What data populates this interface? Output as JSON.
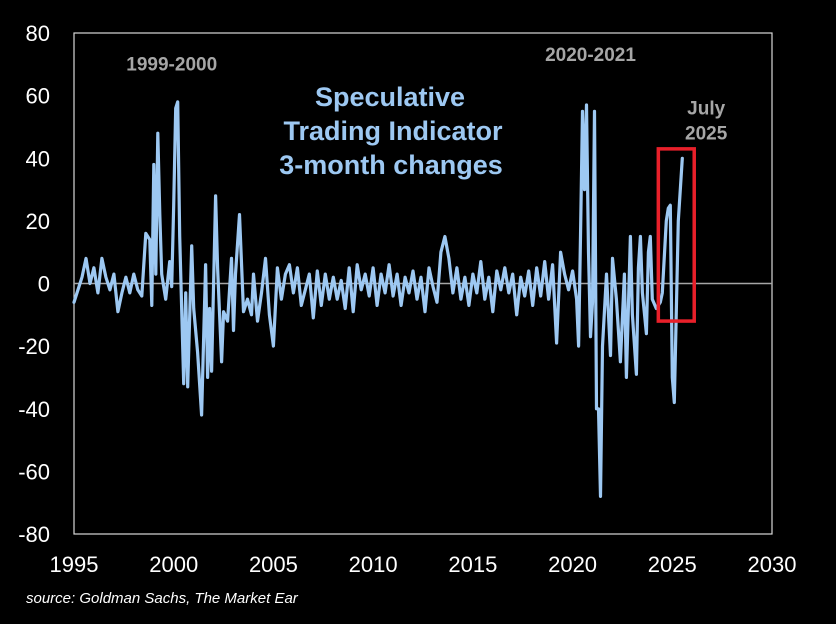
{
  "chart_data": {
    "type": "line",
    "title": [
      "Speculative",
      "Trading Indicator",
      "3-month changes"
    ],
    "xlabel": "",
    "ylabel": "",
    "xlim": [
      1995,
      2030
    ],
    "ylim": [
      -80,
      80
    ],
    "x_ticks": [
      "1995",
      "2000",
      "2005",
      "2010",
      "2015",
      "2020",
      "2025",
      "2030"
    ],
    "y_ticks": [
      "80",
      "60",
      "40",
      "20",
      "0",
      "-20",
      "-40",
      "-60",
      "-80"
    ],
    "grid": false,
    "zero_line": true,
    "annotations": [
      {
        "text": "1999-2000",
        "x": 1999.9,
        "y": 68
      },
      {
        "text": "2020-2021",
        "x": 2020.9,
        "y": 71
      },
      {
        "text": "July",
        "x": 2026.7,
        "y": 54
      },
      {
        "text": "2025",
        "x": 2026.7,
        "y": 46
      }
    ],
    "highlight_box": {
      "x0": 2024.3,
      "x1": 2026.1,
      "y0": -12,
      "y1": 43,
      "color": "#e8202a"
    },
    "line_color": "#9dc8f2",
    "series": [
      {
        "points": [
          [
            1995.0,
            -6
          ],
          [
            1995.2,
            -2
          ],
          [
            1995.4,
            2
          ],
          [
            1995.6,
            8
          ],
          [
            1995.8,
            0
          ],
          [
            1996.0,
            5
          ],
          [
            1996.2,
            -3
          ],
          [
            1996.4,
            8
          ],
          [
            1996.6,
            2
          ],
          [
            1996.8,
            -2
          ],
          [
            1997.0,
            3
          ],
          [
            1997.2,
            -9
          ],
          [
            1997.4,
            -3
          ],
          [
            1997.6,
            2
          ],
          [
            1997.8,
            -3
          ],
          [
            1998.0,
            3
          ],
          [
            1998.2,
            -2
          ],
          [
            1998.4,
            -4
          ],
          [
            1998.6,
            16
          ],
          [
            1998.8,
            14
          ],
          [
            1998.9,
            -7
          ],
          [
            1999.0,
            38
          ],
          [
            1999.1,
            3
          ],
          [
            1999.2,
            48
          ],
          [
            1999.3,
            22
          ],
          [
            1999.4,
            3
          ],
          [
            1999.6,
            -5
          ],
          [
            1999.8,
            7
          ],
          [
            1999.9,
            -1
          ],
          [
            2000.0,
            25
          ],
          [
            2000.1,
            56
          ],
          [
            2000.2,
            58
          ],
          [
            2000.3,
            15
          ],
          [
            2000.5,
            -32
          ],
          [
            2000.6,
            -3
          ],
          [
            2000.7,
            -33
          ],
          [
            2000.9,
            12
          ],
          [
            2001.0,
            -8
          ],
          [
            2001.2,
            -22
          ],
          [
            2001.4,
            -42
          ],
          [
            2001.6,
            6
          ],
          [
            2001.7,
            -30
          ],
          [
            2001.8,
            -8
          ],
          [
            2001.9,
            -28
          ],
          [
            2002.1,
            28
          ],
          [
            2002.2,
            5
          ],
          [
            2002.4,
            -25
          ],
          [
            2002.5,
            -9
          ],
          [
            2002.7,
            -12
          ],
          [
            2002.9,
            8
          ],
          [
            2003.0,
            -15
          ],
          [
            2003.1,
            3
          ],
          [
            2003.3,
            22
          ],
          [
            2003.5,
            -9
          ],
          [
            2003.7,
            -5
          ],
          [
            2003.9,
            -10
          ],
          [
            2004.0,
            3
          ],
          [
            2004.2,
            -12
          ],
          [
            2004.4,
            -3
          ],
          [
            2004.6,
            8
          ],
          [
            2004.8,
            -10
          ],
          [
            2005.0,
            -20
          ],
          [
            2005.2,
            5
          ],
          [
            2005.4,
            -5
          ],
          [
            2005.6,
            3
          ],
          [
            2005.8,
            6
          ],
          [
            2006.0,
            -3
          ],
          [
            2006.2,
            5
          ],
          [
            2006.4,
            -7
          ],
          [
            2006.6,
            -2
          ],
          [
            2006.8,
            3
          ],
          [
            2007.0,
            -11
          ],
          [
            2007.2,
            4
          ],
          [
            2007.4,
            -7
          ],
          [
            2007.6,
            3
          ],
          [
            2007.8,
            -5
          ],
          [
            2008.0,
            2
          ],
          [
            2008.2,
            -5
          ],
          [
            2008.4,
            1
          ],
          [
            2008.6,
            -8
          ],
          [
            2008.8,
            5
          ],
          [
            2009.0,
            -9
          ],
          [
            2009.2,
            6
          ],
          [
            2009.4,
            -2
          ],
          [
            2009.6,
            3
          ],
          [
            2009.8,
            -4
          ],
          [
            2010.0,
            5
          ],
          [
            2010.2,
            -7
          ],
          [
            2010.4,
            3
          ],
          [
            2010.6,
            -3
          ],
          [
            2010.8,
            6
          ],
          [
            2011.0,
            -4
          ],
          [
            2011.2,
            3
          ],
          [
            2011.4,
            -7
          ],
          [
            2011.6,
            2
          ],
          [
            2011.8,
            -3
          ],
          [
            2012.0,
            4
          ],
          [
            2012.2,
            -5
          ],
          [
            2012.4,
            2
          ],
          [
            2012.6,
            -9
          ],
          [
            2012.8,
            5
          ],
          [
            2013.0,
            -1
          ],
          [
            2013.2,
            -6
          ],
          [
            2013.4,
            10
          ],
          [
            2013.6,
            15
          ],
          [
            2013.8,
            8
          ],
          [
            2014.0,
            -3
          ],
          [
            2014.2,
            5
          ],
          [
            2014.4,
            -5
          ],
          [
            2014.6,
            2
          ],
          [
            2014.8,
            -7
          ],
          [
            2015.0,
            3
          ],
          [
            2015.2,
            -3
          ],
          [
            2015.4,
            7
          ],
          [
            2015.6,
            -5
          ],
          [
            2015.8,
            2
          ],
          [
            2016.0,
            -9
          ],
          [
            2016.2,
            4
          ],
          [
            2016.4,
            -2
          ],
          [
            2016.6,
            5
          ],
          [
            2016.8,
            -3
          ],
          [
            2017.0,
            3
          ],
          [
            2017.2,
            -10
          ],
          [
            2017.4,
            2
          ],
          [
            2017.6,
            -4
          ],
          [
            2017.8,
            4
          ],
          [
            2018.0,
            -7
          ],
          [
            2018.2,
            5
          ],
          [
            2018.4,
            -4
          ],
          [
            2018.6,
            7
          ],
          [
            2018.8,
            -5
          ],
          [
            2019.0,
            6
          ],
          [
            2019.2,
            -19
          ],
          [
            2019.4,
            10
          ],
          [
            2019.6,
            3
          ],
          [
            2019.8,
            -2
          ],
          [
            2020.0,
            4
          ],
          [
            2020.2,
            -5
          ],
          [
            2020.3,
            -20
          ],
          [
            2020.4,
            15
          ],
          [
            2020.5,
            55
          ],
          [
            2020.6,
            30
          ],
          [
            2020.7,
            57
          ],
          [
            2020.8,
            10
          ],
          [
            2020.9,
            -17
          ],
          [
            2021.0,
            -6
          ],
          [
            2021.1,
            55
          ],
          [
            2021.2,
            -40
          ],
          [
            2021.3,
            -40
          ],
          [
            2021.4,
            -68
          ],
          [
            2021.5,
            -20
          ],
          [
            2021.7,
            3
          ],
          [
            2021.9,
            -23
          ],
          [
            2022.0,
            8
          ],
          [
            2022.2,
            -5
          ],
          [
            2022.4,
            -25
          ],
          [
            2022.6,
            3
          ],
          [
            2022.7,
            -30
          ],
          [
            2022.9,
            15
          ],
          [
            2023.0,
            -10
          ],
          [
            2023.2,
            -29
          ],
          [
            2023.3,
            5
          ],
          [
            2023.4,
            15
          ],
          [
            2023.5,
            -3
          ],
          [
            2023.7,
            -16
          ],
          [
            2023.8,
            10
          ],
          [
            2023.9,
            15
          ],
          [
            2024.0,
            -5
          ],
          [
            2024.2,
            -8
          ],
          [
            2024.4,
            -6
          ],
          [
            2024.5,
            -3
          ],
          [
            2024.7,
            20
          ],
          [
            2024.8,
            24
          ],
          [
            2024.9,
            25
          ],
          [
            2025.0,
            -30
          ],
          [
            2025.1,
            -38
          ],
          [
            2025.3,
            20
          ],
          [
            2025.5,
            40
          ]
        ]
      }
    ]
  },
  "footer": {
    "source": "source: Goldman Sachs, The Market Ear"
  }
}
